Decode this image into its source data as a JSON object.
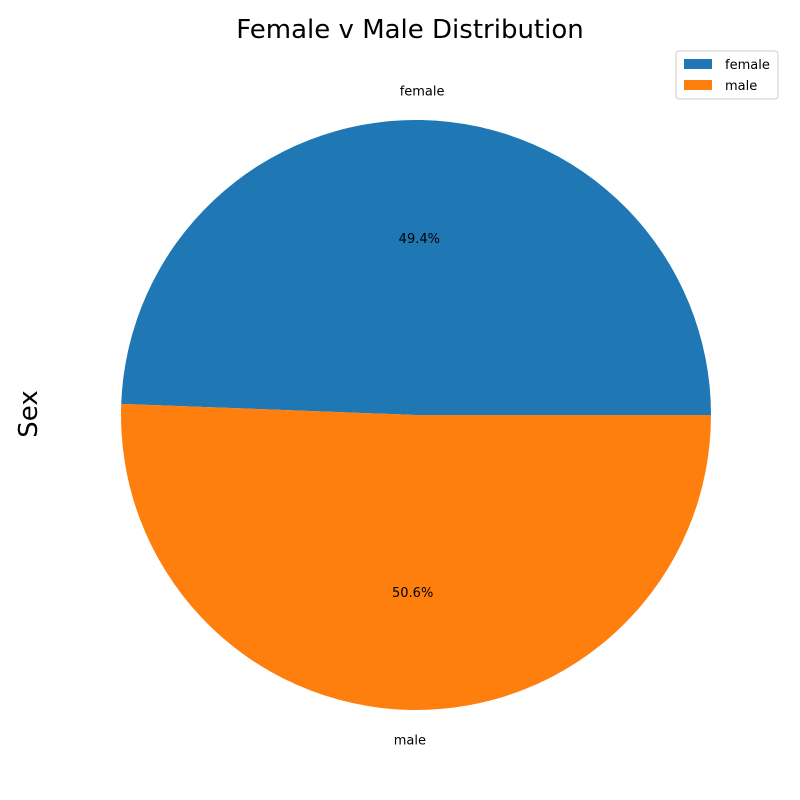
{
  "chart_data": {
    "type": "pie",
    "title": "Female v Male Distribution",
    "ylabel": "Sex",
    "legend_position": "top-right",
    "slices": [
      {
        "label": "female",
        "value": 49.4,
        "display": "49.4%",
        "color": "#1f77b4"
      },
      {
        "label": "male",
        "value": 50.6,
        "display": "50.6%",
        "color": "#ff7f0e"
      }
    ]
  }
}
